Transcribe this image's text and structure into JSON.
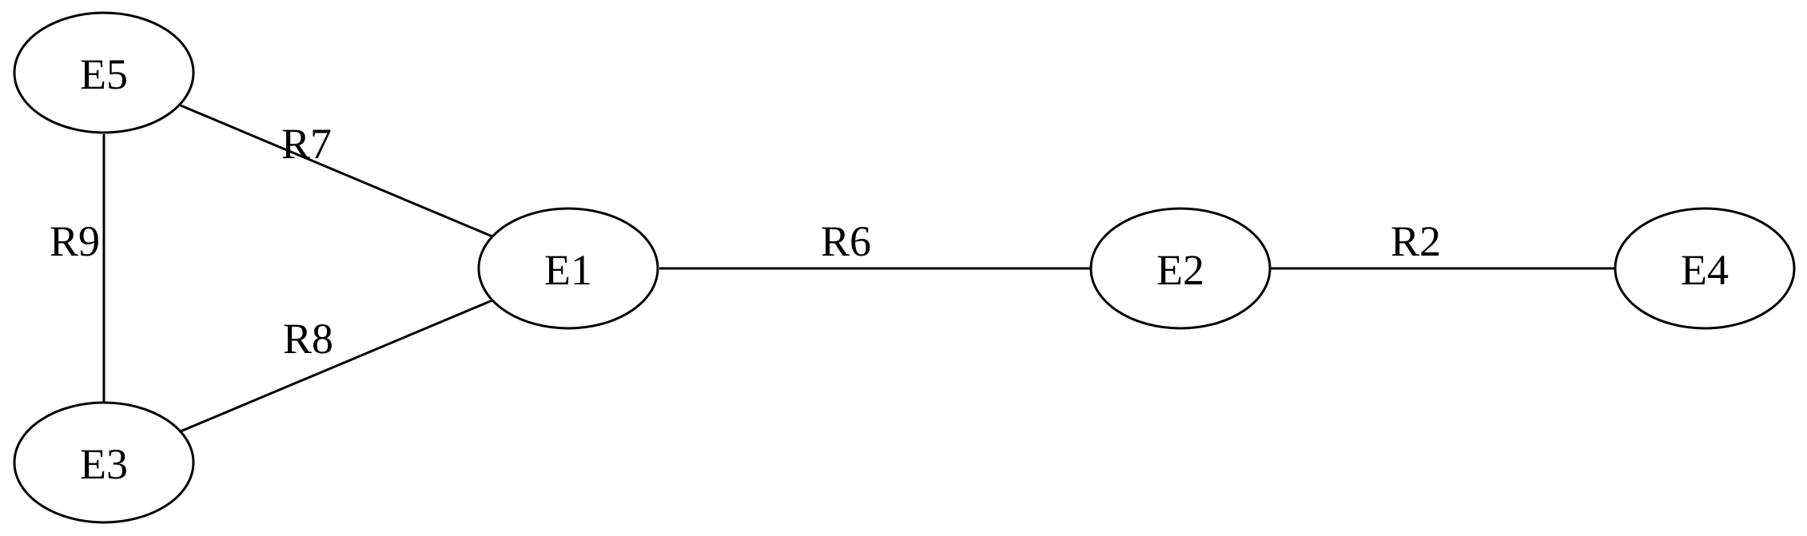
{
  "nodes": [
    {
      "id": "E5",
      "label": "E5"
    },
    {
      "id": "E3",
      "label": "E3"
    },
    {
      "id": "E1",
      "label": "E1"
    },
    {
      "id": "E2",
      "label": "E2"
    },
    {
      "id": "E4",
      "label": "E4"
    }
  ],
  "edges": [
    {
      "id": "R7",
      "label": "R7",
      "from": "E5",
      "to": "E1"
    },
    {
      "id": "R9",
      "label": "R9",
      "from": "E5",
      "to": "E3"
    },
    {
      "id": "R8",
      "label": "R8",
      "from": "E3",
      "to": "E1"
    },
    {
      "id": "R6",
      "label": "R6",
      "from": "E1",
      "to": "E2"
    },
    {
      "id": "R2",
      "label": "R2",
      "from": "E2",
      "to": "E4"
    }
  ]
}
